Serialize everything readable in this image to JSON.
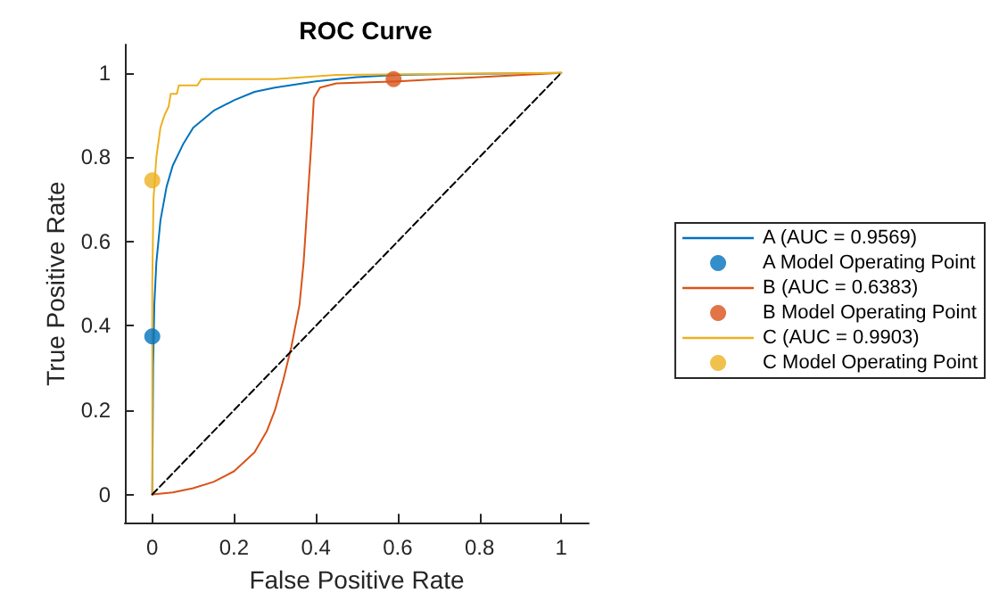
{
  "chart_data": {
    "type": "line",
    "title": "ROC Curve",
    "xlabel": "False Positive Rate",
    "ylabel": "True Positive Rate",
    "xlim": [
      -0.067,
      1.067
    ],
    "ylim": [
      -0.067,
      1.067
    ],
    "xticks": [
      0,
      0.2,
      0.4,
      0.6,
      0.8,
      1
    ],
    "yticks": [
      0,
      0.2,
      0.4,
      0.6,
      0.8,
      1
    ],
    "grid": false,
    "legend": "right",
    "series": [
      {
        "name": "A (AUC = 0.9569)",
        "color": "#0072bd",
        "x": [
          0,
          0.002,
          0.005,
          0.01,
          0.02,
          0.035,
          0.05,
          0.075,
          0.1,
          0.15,
          0.2,
          0.25,
          0.3,
          0.4,
          0.5,
          0.6,
          0.8,
          1
        ],
        "values": [
          0,
          0.3,
          0.45,
          0.55,
          0.65,
          0.73,
          0.78,
          0.83,
          0.87,
          0.91,
          0.935,
          0.955,
          0.965,
          0.98,
          0.99,
          0.995,
          0.998,
          1
        ]
      },
      {
        "name": "A Model Operating Point",
        "type": "scatter",
        "marker": "circle",
        "color": "#0072bd",
        "x": [
          0
        ],
        "values": [
          0.375
        ]
      },
      {
        "name": "B (AUC = 0.6383)",
        "color": "#d95319",
        "x": [
          0,
          0.05,
          0.1,
          0.15,
          0.2,
          0.25,
          0.28,
          0.3,
          0.32,
          0.34,
          0.36,
          0.37,
          0.38,
          0.39,
          0.395,
          0.41,
          0.45,
          0.6,
          0.8,
          1
        ],
        "values": [
          0,
          0.005,
          0.015,
          0.03,
          0.055,
          0.1,
          0.15,
          0.2,
          0.27,
          0.35,
          0.45,
          0.55,
          0.7,
          0.85,
          0.94,
          0.965,
          0.975,
          0.98,
          0.99,
          1
        ]
      },
      {
        "name": "B Model Operating Point",
        "type": "scatter",
        "marker": "circle",
        "color": "#d95319",
        "x": [
          0.59
        ],
        "values": [
          0.985
        ]
      },
      {
        "name": "C (AUC = 0.9903)",
        "color": "#edb120",
        "x": [
          0,
          0,
          0.003,
          0.01,
          0.02,
          0.03,
          0.04,
          0.045,
          0.06,
          0.065,
          0.11,
          0.12,
          0.3,
          0.45,
          1
        ],
        "values": [
          0,
          0.5,
          0.7,
          0.8,
          0.87,
          0.9,
          0.92,
          0.95,
          0.95,
          0.97,
          0.97,
          0.985,
          0.985,
          0.995,
          1
        ]
      },
      {
        "name": "C Model Operating Point",
        "type": "scatter",
        "marker": "circle",
        "color": "#edb120",
        "x": [
          0
        ],
        "values": [
          0.745
        ]
      },
      {
        "line_style": "dashed",
        "color": "#000000",
        "x": [
          0,
          1
        ],
        "values": [
          0,
          1
        ]
      }
    ]
  }
}
